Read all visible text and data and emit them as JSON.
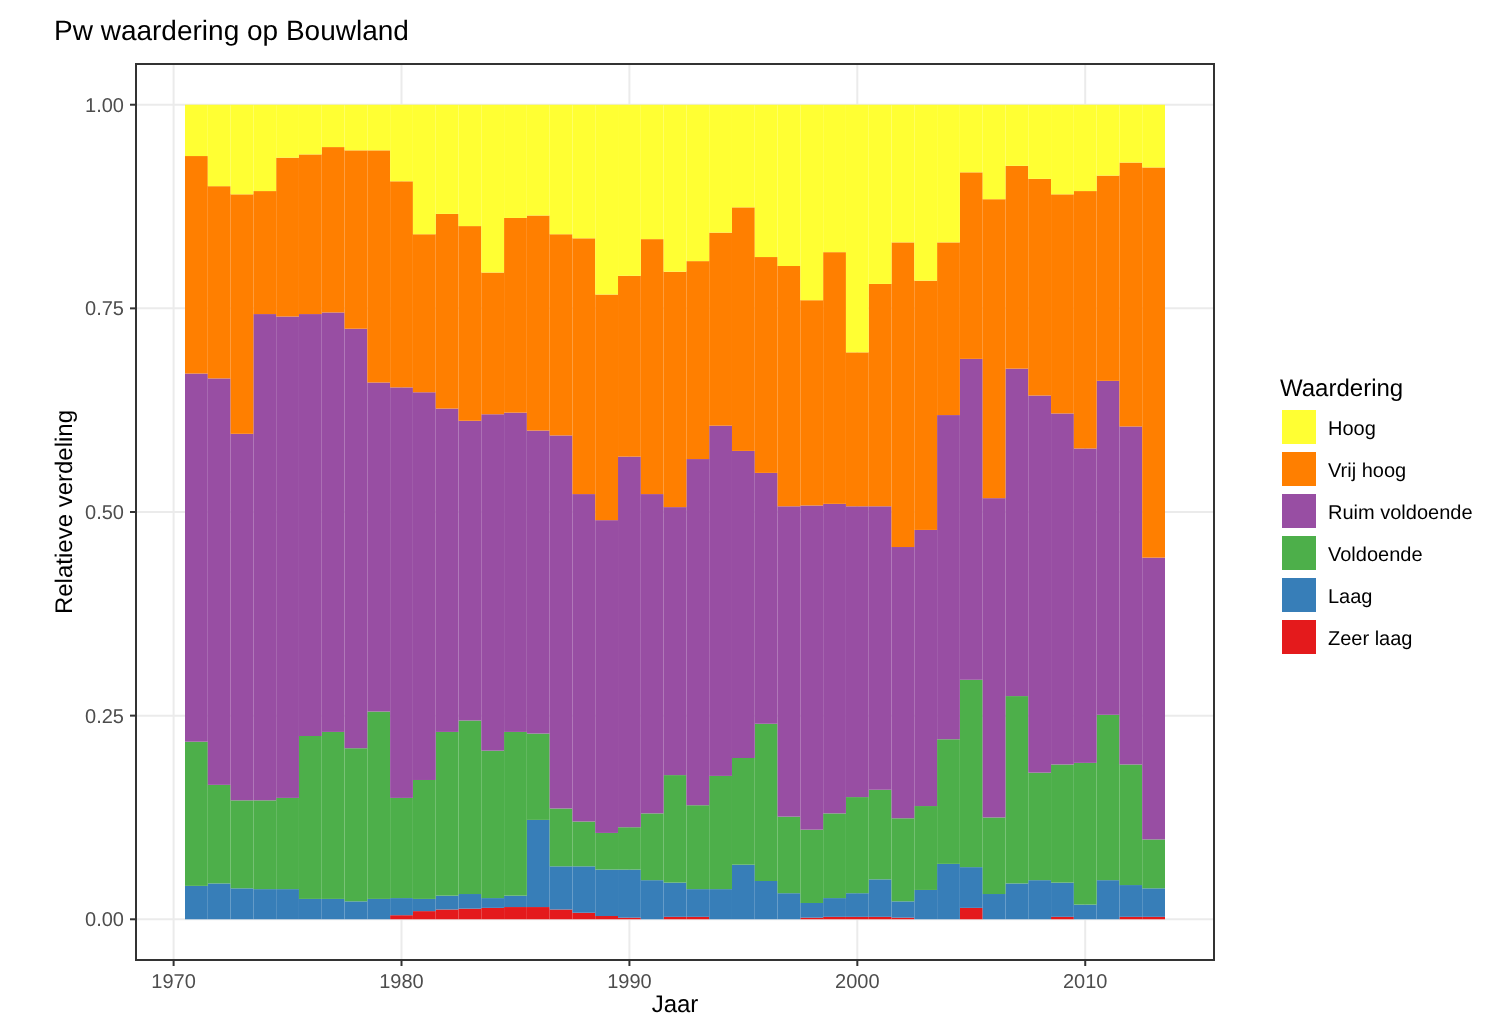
{
  "chart_data": {
    "type": "bar",
    "stacked": true,
    "title": "Pw waardering op Bouwland",
    "xlabel": "Jaar",
    "ylabel": "Relatieve verdeling",
    "legend_title": "Waardering",
    "legend": "right",
    "grid": true,
    "x": [
      1971,
      1972,
      1973,
      1974,
      1975,
      1976,
      1977,
      1978,
      1979,
      1980,
      1981,
      1982,
      1983,
      1984,
      1985,
      1986,
      1987,
      1988,
      1989,
      1990,
      1991,
      1992,
      1993,
      1994,
      1995,
      1996,
      1997,
      1998,
      1999,
      2000,
      2001,
      2002,
      2003,
      2004,
      2005,
      2006,
      2007,
      2008,
      2009,
      2010,
      2011,
      2012,
      2013
    ],
    "xlim": [
      1968.35,
      2015.65
    ],
    "xticks": [
      1970,
      1980,
      1990,
      2000,
      2010
    ],
    "ylim": [
      -0.05,
      1.05
    ],
    "yticks": [
      {
        "value": 0,
        "label": "0.00"
      },
      {
        "value": 0.25,
        "label": "0.25"
      },
      {
        "value": 0.5,
        "label": "0.50"
      },
      {
        "value": 0.75,
        "label": "0.75"
      },
      {
        "value": 1,
        "label": "1.00"
      }
    ],
    "series": [
      {
        "name": "Zeer laag",
        "color": "#e41a1c",
        "values": [
          0,
          0,
          0,
          0,
          0,
          0,
          0,
          0,
          0,
          0.005,
          0.01,
          0.012,
          0.013,
          0.014,
          0.015,
          0.015,
          0.012,
          0.008,
          0.004,
          0.002,
          0,
          0.003,
          0.003,
          0,
          0,
          0,
          0,
          0.002,
          0.003,
          0.003,
          0.003,
          0.002,
          0,
          0,
          0.014,
          0,
          0,
          0,
          0.003,
          0,
          0,
          0.003,
          0.003
        ]
      },
      {
        "name": "Laag",
        "color": "#377eb8",
        "values": [
          0.041,
          0.044,
          0.038,
          0.037,
          0.037,
          0.025,
          0.025,
          0.022,
          0.025,
          0.021,
          0.015,
          0.017,
          0.018,
          0.012,
          0.014,
          0.107,
          0.053,
          0.057,
          0.057,
          0.059,
          0.048,
          0.042,
          0.034,
          0.037,
          0.067,
          0.047,
          0.032,
          0.018,
          0.023,
          0.029,
          0.046,
          0.02,
          0.036,
          0.068,
          0.05,
          0.031,
          0.044,
          0.048,
          0.042,
          0.018,
          0.048,
          0.039,
          0.035
        ]
      },
      {
        "name": "Voldoende",
        "color": "#4daf4a",
        "values": [
          0.177,
          0.121,
          0.108,
          0.109,
          0.112,
          0.2,
          0.205,
          0.188,
          0.23,
          0.123,
          0.146,
          0.201,
          0.213,
          0.181,
          0.201,
          0.106,
          0.071,
          0.055,
          0.045,
          0.052,
          0.082,
          0.132,
          0.103,
          0.139,
          0.131,
          0.193,
          0.094,
          0.09,
          0.104,
          0.118,
          0.11,
          0.102,
          0.103,
          0.153,
          0.23,
          0.094,
          0.23,
          0.132,
          0.145,
          0.174,
          0.203,
          0.148,
          0.06
        ]
      },
      {
        "name": "Ruim voldoende",
        "color": "#984ea3",
        "values": [
          0.452,
          0.499,
          0.45,
          0.597,
          0.591,
          0.518,
          0.515,
          0.515,
          0.404,
          0.504,
          0.476,
          0.397,
          0.368,
          0.413,
          0.392,
          0.372,
          0.458,
          0.402,
          0.384,
          0.455,
          0.392,
          0.329,
          0.425,
          0.43,
          0.377,
          0.308,
          0.381,
          0.398,
          0.38,
          0.357,
          0.348,
          0.333,
          0.339,
          0.398,
          0.394,
          0.392,
          0.402,
          0.463,
          0.431,
          0.386,
          0.41,
          0.415,
          0.346
        ]
      },
      {
        "name": "Vrij hoog",
        "color": "#ff7f00",
        "values": [
          0.267,
          0.236,
          0.294,
          0.151,
          0.195,
          0.196,
          0.203,
          0.219,
          0.285,
          0.253,
          0.194,
          0.239,
          0.239,
          0.174,
          0.239,
          0.264,
          0.247,
          0.314,
          0.277,
          0.222,
          0.313,
          0.289,
          0.243,
          0.237,
          0.299,
          0.265,
          0.295,
          0.252,
          0.309,
          0.189,
          0.273,
          0.374,
          0.306,
          0.212,
          0.229,
          0.367,
          0.249,
          0.266,
          0.269,
          0.316,
          0.252,
          0.324,
          0.479
        ]
      },
      {
        "name": "Hoog",
        "color": "#ffff33",
        "values": [
          0.063,
          0.1,
          0.11,
          0.106,
          0.065,
          0.061,
          0.052,
          0.056,
          0.056,
          0.094,
          0.159,
          0.134,
          0.149,
          0.206,
          0.139,
          0.136,
          0.159,
          0.164,
          0.233,
          0.21,
          0.165,
          0.205,
          0.192,
          0.157,
          0.126,
          0.187,
          0.198,
          0.24,
          0.181,
          0.304,
          0.22,
          0.169,
          0.216,
          0.169,
          0.083,
          0.116,
          0.075,
          0.091,
          0.11,
          0.106,
          0.087,
          0.071,
          0.077
        ]
      }
    ]
  }
}
